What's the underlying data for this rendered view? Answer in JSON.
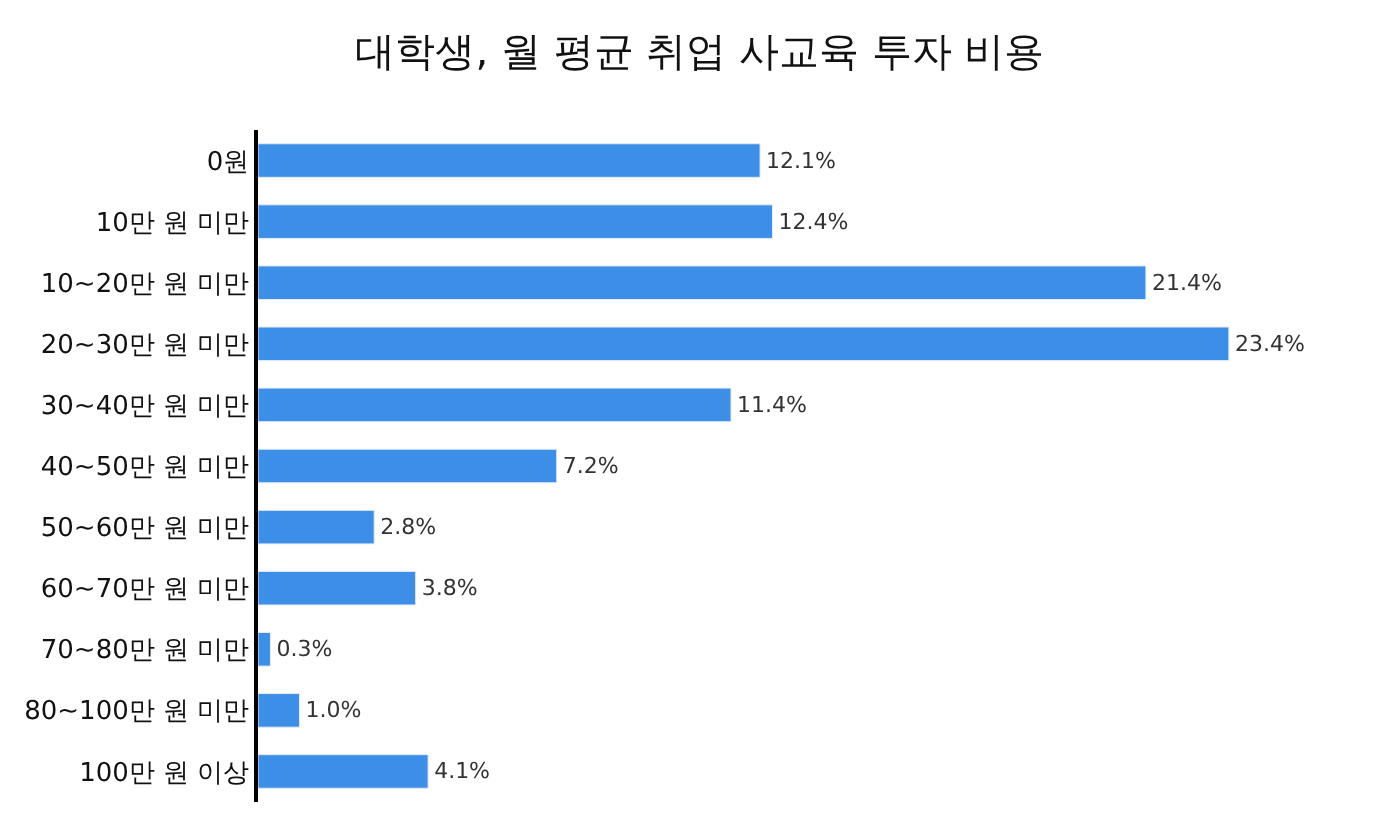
{
  "chart_data": {
    "type": "bar",
    "orientation": "horizontal",
    "title": "대학생, 월 평균 취업 사교육 투자 비용",
    "categories": [
      "0원",
      "10만 원 미만",
      "10~20만 원 미만",
      "20~30만 원 미만",
      "30~40만 원 미만",
      "40~50만 원 미만",
      "50~60만 원 미만",
      "60~70만 원 미만",
      "70~80만 원 미만",
      "80~100만 원 미만",
      "100만 원 이상"
    ],
    "values": [
      12.1,
      12.4,
      21.4,
      23.4,
      11.4,
      7.2,
      2.8,
      3.8,
      0.3,
      1.0,
      4.1
    ],
    "value_labels": [
      "12.1%",
      "12.4%",
      "21.4%",
      "23.4%",
      "11.4%",
      "7.2%",
      "2.8%",
      "3.8%",
      "0.3%",
      "1.0%",
      "4.1%"
    ],
    "color": "#3d8ee6"
  }
}
